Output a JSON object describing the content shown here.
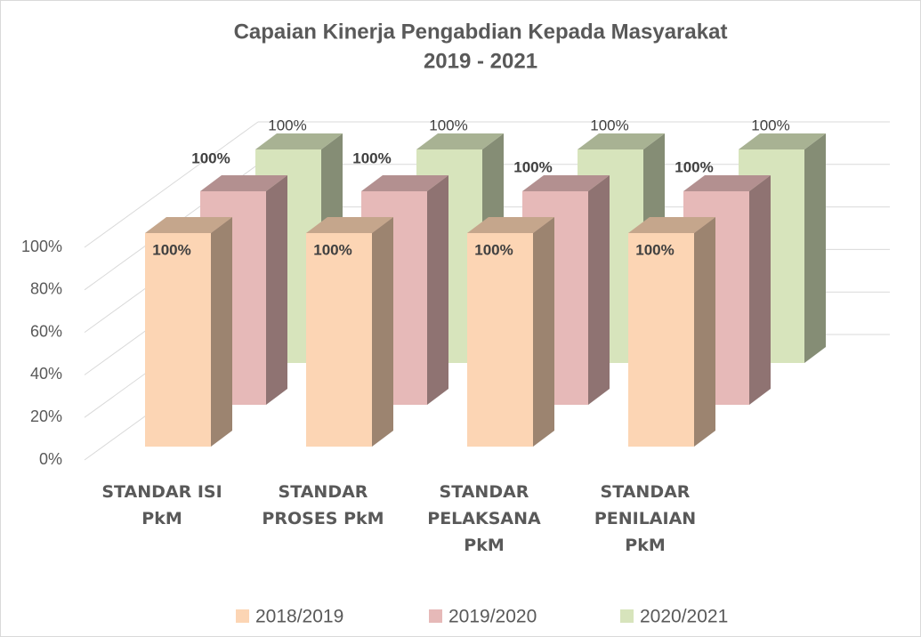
{
  "chart_data": {
    "type": "bar3d",
    "title": "Capaian Kinerja Pengabdian Kepada Masyarakat",
    "subtitle": "2019 - 2021",
    "categories": [
      "STANDAR ISI PkM",
      "STANDAR PROSES PkM",
      "STANDAR PELAKSANA PkM",
      "STANDAR PENILAIAN PkM"
    ],
    "series": [
      {
        "name": "2018/2019",
        "color": "#FCD5B4",
        "values": [
          100,
          100,
          100,
          100
        ],
        "value_labels": [
          "100%",
          "100%",
          "100%",
          "100%"
        ]
      },
      {
        "name": "2019/2020",
        "color": "#E6B9B8",
        "values": [
          100,
          100,
          100,
          100
        ],
        "value_labels": [
          "100%",
          "100%",
          "100%",
          "100%"
        ]
      },
      {
        "name": "2020/2021",
        "color": "#D7E4BC",
        "values": [
          100,
          100,
          100,
          100
        ],
        "value_labels": [
          "100%",
          "100%",
          "100%",
          "100%"
        ]
      }
    ],
    "ylim": [
      0,
      100
    ],
    "yticks": [
      {
        "value": 0,
        "label": "0%"
      },
      {
        "value": 20,
        "label": "20%"
      },
      {
        "value": 40,
        "label": "40%"
      },
      {
        "value": 60,
        "label": "60%"
      },
      {
        "value": 80,
        "label": "80%"
      },
      {
        "value": 100,
        "label": "100%"
      }
    ],
    "grid": true,
    "legend": "bottom"
  }
}
